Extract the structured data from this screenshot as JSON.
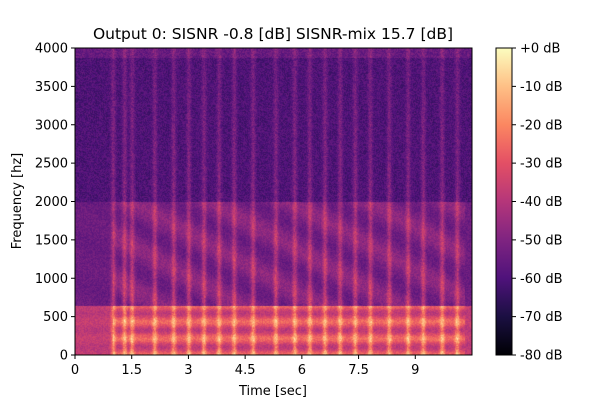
{
  "chart_data": {
    "type": "heatmap",
    "title": "Output 0: SISNR -0.8 [dB] SISNR-mix 15.7 [dB]",
    "xlabel": "Time [sec]",
    "ylabel": "Frequency [hz]",
    "xlim": [
      0,
      10.5
    ],
    "ylim": [
      0,
      4000
    ],
    "x_ticks": [
      0,
      1.5,
      3,
      4.5,
      6,
      7.5,
      9
    ],
    "x_tick_labels": [
      "0",
      "1.5",
      "3",
      "4.5",
      "6",
      "7.5",
      "9"
    ],
    "y_ticks": [
      0,
      500,
      1000,
      1500,
      2000,
      2500,
      3000,
      3500,
      4000
    ],
    "y_tick_labels": [
      "0",
      "500",
      "1000",
      "1500",
      "2000",
      "2500",
      "3000",
      "3500",
      "4000"
    ],
    "colormap": "magma",
    "colorbar": {
      "range_db": [
        -80,
        0
      ],
      "ticks": [
        0,
        -10,
        -20,
        -30,
        -40,
        -50,
        -60,
        -70,
        -80
      ],
      "tick_labels": [
        "+0 dB",
        "-10 dB",
        "-20 dB",
        "-30 dB",
        "-40 dB",
        "-50 dB",
        "-60 dB",
        "-70 dB",
        "-80 dB"
      ]
    },
    "approx_level_db": {
      "background": -60,
      "voiced_low_frequency_band_0_600_hz": -25,
      "high_frequency_region": -55
    },
    "approx_onset_times_sec": [
      1.0,
      1.3,
      1.5,
      2.1,
      2.6,
      3.0,
      3.4,
      3.8,
      4.2,
      4.7,
      5.3,
      5.8,
      6.2,
      6.6,
      7.0,
      7.4,
      7.8,
      8.3,
      8.8,
      9.2,
      9.7,
      10.1
    ]
  }
}
